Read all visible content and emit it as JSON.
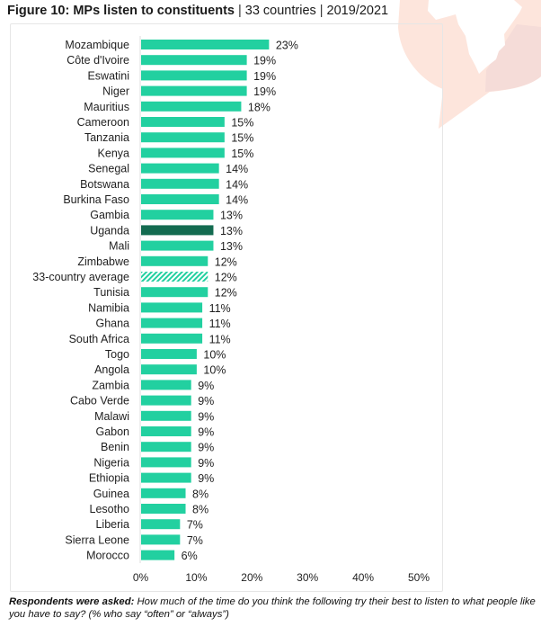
{
  "figure": {
    "title_bold": "Figure 10: MPs listen to constituents",
    "title_separator": "|",
    "subtitle_countries": "33 countries",
    "subtitle_years": "2019/2021"
  },
  "note": {
    "lead": "Respondents were asked:",
    "text": "How much of the time do you think the following try their best to listen to what people like you have to say? (% who say “often” or “always”)"
  },
  "colors": {
    "bar": "#22d0a0",
    "highlight": "#136b50",
    "average_hatch": "#22d0a0",
    "axis": "#e3e3e3",
    "logo_light": "#fde5dc",
    "logo_mid": "#f5dcd8"
  },
  "chart_data": {
    "type": "bar",
    "orientation": "horizontal",
    "title": "Figure 10: MPs listen to constituents",
    "xlabel": "",
    "ylabel": "",
    "xlim": [
      0,
      50
    ],
    "x_ticks": [
      "0%",
      "10%",
      "20%",
      "30%",
      "40%",
      "50%"
    ],
    "x_tick_values": [
      0,
      10,
      20,
      30,
      40,
      50
    ],
    "grid": false,
    "legend": "none",
    "value_suffix": "%",
    "highlight": "Uganda",
    "average_label": "33-country average",
    "categories": [
      "Mozambique",
      "Côte d'Ivoire",
      "Eswatini",
      "Niger",
      "Mauritius",
      "Cameroon",
      "Tanzania",
      "Kenya",
      "Senegal",
      "Botswana",
      "Burkina Faso",
      "Gambia",
      "Uganda",
      "Mali",
      "Zimbabwe",
      "33-country average",
      "Tunisia",
      "Namibia",
      "Ghana",
      "South Africa",
      "Togo",
      "Angola",
      "Zambia",
      "Cabo Verde",
      "Malawi",
      "Gabon",
      "Benin",
      "Nigeria",
      "Ethiopia",
      "Guinea",
      "Lesotho",
      "Liberia",
      "Sierra Leone",
      "Morocco"
    ],
    "values": [
      23,
      19,
      19,
      19,
      18,
      15,
      15,
      15,
      14,
      14,
      14,
      13,
      13,
      13,
      12,
      12,
      12,
      11,
      11,
      11,
      10,
      10,
      9,
      9,
      9,
      9,
      9,
      9,
      9,
      8,
      8,
      7,
      7,
      6
    ],
    "labels": [
      "23%",
      "19%",
      "19%",
      "19%",
      "18%",
      "15%",
      "15%",
      "15%",
      "14%",
      "14%",
      "14%",
      "13%",
      "13%",
      "13%",
      "12%",
      "12%",
      "12%",
      "11%",
      "11%",
      "11%",
      "10%",
      "10%",
      "9%",
      "9%",
      "9%",
      "9%",
      "9%",
      "9%",
      "9%",
      "8%",
      "8%",
      "7%",
      "7%",
      "6%"
    ]
  }
}
